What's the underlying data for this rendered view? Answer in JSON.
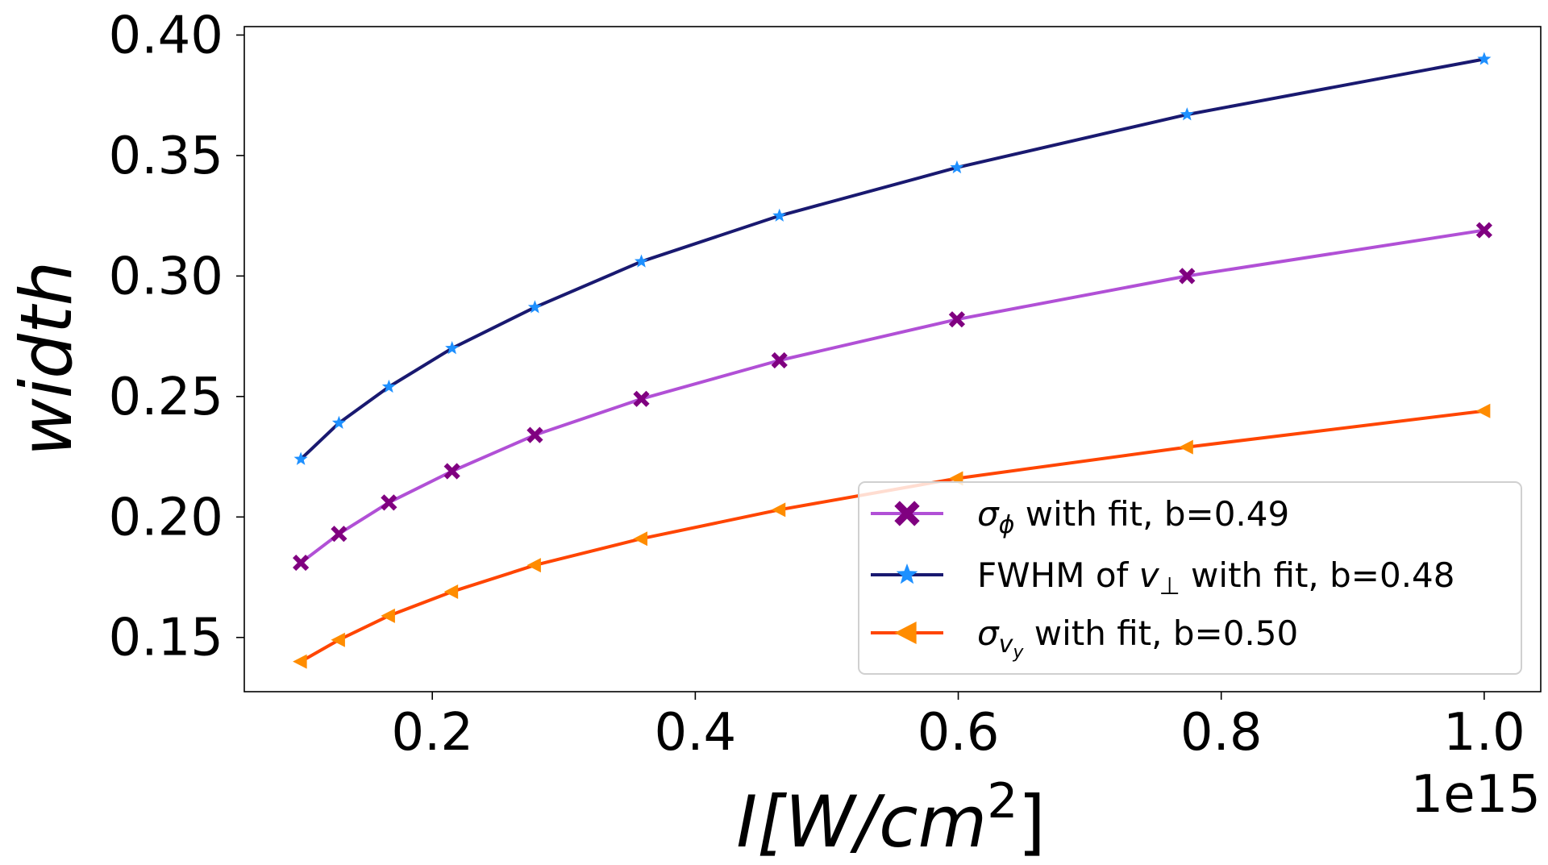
{
  "chart_data": {
    "type": "line",
    "title": "",
    "xlabel": "I[W/cm2]",
    "xlabel_parts": {
      "pre": "I[W/cm",
      "sup": "2",
      "post": "]"
    },
    "ylabel": "width",
    "x_offset_label": "1e15",
    "xlim": [
      0.057,
      1.043
    ],
    "ylim": [
      0.1275,
      0.4035
    ],
    "xticks": [
      0.2,
      0.4,
      0.6,
      0.8,
      1.0
    ],
    "xtick_labels": [
      "0.2",
      "0.4",
      "0.6",
      "0.8",
      "1.0"
    ],
    "yticks": [
      0.15,
      0.2,
      0.25,
      0.3,
      0.35,
      0.4
    ],
    "ytick_labels": [
      "0.15",
      "0.20",
      "0.25",
      "0.30",
      "0.35",
      "0.40"
    ],
    "x": [
      0.1,
      0.129,
      0.167,
      0.215,
      0.278,
      0.359,
      0.464,
      0.599,
      0.774,
      1.0
    ],
    "series": [
      {
        "name": "σϕ with fit, b=0.49",
        "legend_main": "σ",
        "legend_sub": "ϕ",
        "legend_rest": " with fit, b=0.49",
        "values": [
          0.181,
          0.193,
          0.206,
          0.219,
          0.234,
          0.249,
          0.265,
          0.282,
          0.3,
          0.319
        ],
        "line_color": "#b150d6",
        "marker_color": "#800080",
        "marker": "x"
      },
      {
        "name": "FWHM of v⊥ with fit, b=0.48",
        "legend_main": "FWHM of ",
        "legend_v": "v",
        "legend_sub": "⊥",
        "legend_rest": " with fit, b=0.48",
        "values": [
          0.224,
          0.239,
          0.254,
          0.27,
          0.287,
          0.306,
          0.325,
          0.345,
          0.367,
          0.39
        ],
        "line_color": "#191970",
        "marker_color": "#1e90ff",
        "marker": "star"
      },
      {
        "name": "σvy with fit, b=0.50",
        "legend_main": "σ",
        "legend_sub": "v",
        "legend_subsub": "y",
        "legend_rest": " with fit, b=0.50",
        "values": [
          0.14,
          0.149,
          0.159,
          0.169,
          0.18,
          0.191,
          0.203,
          0.216,
          0.229,
          0.244
        ],
        "line_color": "#ff4500",
        "marker_color": "#ff8c00",
        "marker": "triangle-left"
      }
    ],
    "legend_position": "lower right"
  }
}
